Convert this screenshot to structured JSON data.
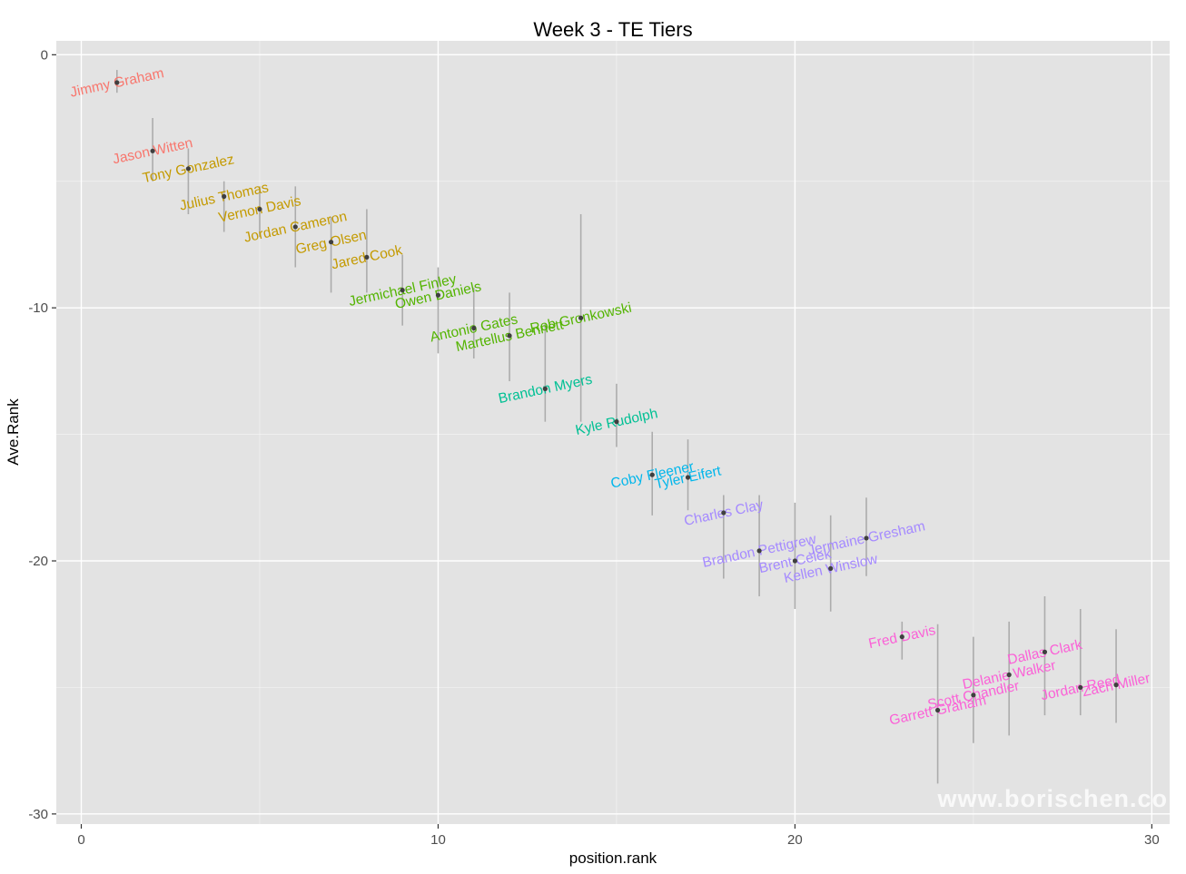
{
  "chart_data": {
    "type": "scatter",
    "title": "Week 3 - TE Tiers",
    "xlabel": "position.rank",
    "ylabel": "Ave.Rank",
    "watermark": "www.borischen.co",
    "xlim": [
      -0.7,
      30.5
    ],
    "ylim": [
      -30.4,
      0.55
    ],
    "x_major_ticks": [
      0,
      10,
      20,
      30
    ],
    "x_minor_ticks": [
      5,
      15,
      25
    ],
    "y_major_ticks": [
      0,
      -10,
      -20,
      -30
    ],
    "y_minor_ticks": [
      -5,
      -15,
      -25
    ],
    "legend": "none",
    "grid": "on",
    "style": {
      "panel_bg": "#E3E3E3",
      "grid_color": "#FFFFFF",
      "point_color": "#3F3F3F",
      "errorbar_color": "#ACACAC",
      "label_angle_deg": -12
    },
    "tiers": [
      {
        "tier": 1,
        "color": "#F8766D",
        "players": [
          {
            "name": "Jimmy Graham",
            "x": 1,
            "y": -1.1,
            "lo": -1.5,
            "hi": -0.6
          },
          {
            "name": "Jason Witten",
            "x": 2,
            "y": -3.8,
            "lo": -5.0,
            "hi": -2.5
          }
        ]
      },
      {
        "tier": 2,
        "color": "#C49A00",
        "players": [
          {
            "name": "Tony Gonzalez",
            "x": 3,
            "y": -4.5,
            "lo": -6.3,
            "hi": -3.7
          },
          {
            "name": "Julius Thomas",
            "x": 4,
            "y": -5.6,
            "lo": -7.0,
            "hi": -5.0
          },
          {
            "name": "Vernon Davis",
            "x": 5,
            "y": -6.1,
            "lo": -7.2,
            "hi": -5.2
          },
          {
            "name": "Jordan Cameron",
            "x": 6,
            "y": -6.8,
            "lo": -8.4,
            "hi": -5.2
          },
          {
            "name": "Greg Olsen",
            "x": 7,
            "y": -7.4,
            "lo": -9.4,
            "hi": -6.4
          },
          {
            "name": "Jared Cook",
            "x": 8,
            "y": -8.0,
            "lo": -9.4,
            "hi": -6.1
          }
        ]
      },
      {
        "tier": 3,
        "color": "#53B400",
        "players": [
          {
            "name": "Jermichael Finley",
            "x": 9,
            "y": -9.3,
            "lo": -10.7,
            "hi": -7.9
          },
          {
            "name": "Owen Daniels",
            "x": 10,
            "y": -9.5,
            "lo": -11.8,
            "hi": -8.4
          },
          {
            "name": "Antonio Gates",
            "x": 11,
            "y": -10.8,
            "lo": -12.0,
            "hi": -9.2
          },
          {
            "name": "Martellus Bennett",
            "x": 12,
            "y": -11.1,
            "lo": -12.9,
            "hi": -9.4
          },
          {
            "name": "Rob Gronkowski",
            "x": 14,
            "y": -10.4,
            "lo": -14.5,
            "hi": -6.3
          }
        ]
      },
      {
        "tier": 4,
        "color": "#00C094",
        "players": [
          {
            "name": "Brandon Myers",
            "x": 13,
            "y": -13.2,
            "lo": -14.5,
            "hi": -10.6
          },
          {
            "name": "Kyle Rudolph",
            "x": 15,
            "y": -14.5,
            "lo": -15.5,
            "hi": -13.0
          }
        ]
      },
      {
        "tier": 5,
        "color": "#00B6EB",
        "players": [
          {
            "name": "Coby Fleener",
            "x": 16,
            "y": -16.6,
            "lo": -18.2,
            "hi": -14.9
          },
          {
            "name": "Tyler Eifert",
            "x": 17,
            "y": -16.7,
            "lo": -18.0,
            "hi": -15.2
          }
        ]
      },
      {
        "tier": 6,
        "color": "#A58AFF",
        "players": [
          {
            "name": "Charles Clay",
            "x": 18,
            "y": -18.1,
            "lo": -20.7,
            "hi": -17.4
          },
          {
            "name": "Brandon Pettigrew",
            "x": 19,
            "y": -19.6,
            "lo": -21.4,
            "hi": -17.4
          },
          {
            "name": "Brent Celek",
            "x": 20,
            "y": -20.0,
            "lo": -21.9,
            "hi": -17.7
          },
          {
            "name": "Kellen Winslow",
            "x": 21,
            "y": -20.3,
            "lo": -22.0,
            "hi": -18.2
          },
          {
            "name": "Jermaine Gresham",
            "x": 22,
            "y": -19.1,
            "lo": -20.6,
            "hi": -17.5
          }
        ]
      },
      {
        "tier": 7,
        "color": "#FB61D7",
        "players": [
          {
            "name": "Fred Davis",
            "x": 23,
            "y": -23.0,
            "lo": -23.9,
            "hi": -22.4
          },
          {
            "name": "Garrett Graham",
            "x": 24,
            "y": -25.9,
            "lo": -28.8,
            "hi": -22.5
          },
          {
            "name": "Scott Chandler",
            "x": 25,
            "y": -25.3,
            "lo": -27.2,
            "hi": -23.0
          },
          {
            "name": "Delanie Walker",
            "x": 26,
            "y": -24.5,
            "lo": -26.9,
            "hi": -22.4
          },
          {
            "name": "Dallas Clark",
            "x": 27,
            "y": -23.6,
            "lo": -26.1,
            "hi": -21.4
          },
          {
            "name": "Jordan Reed",
            "x": 28,
            "y": -25.0,
            "lo": -26.1,
            "hi": -21.9
          },
          {
            "name": "Zach Miller",
            "x": 29,
            "y": -24.9,
            "lo": -26.4,
            "hi": -22.7
          }
        ]
      }
    ]
  }
}
